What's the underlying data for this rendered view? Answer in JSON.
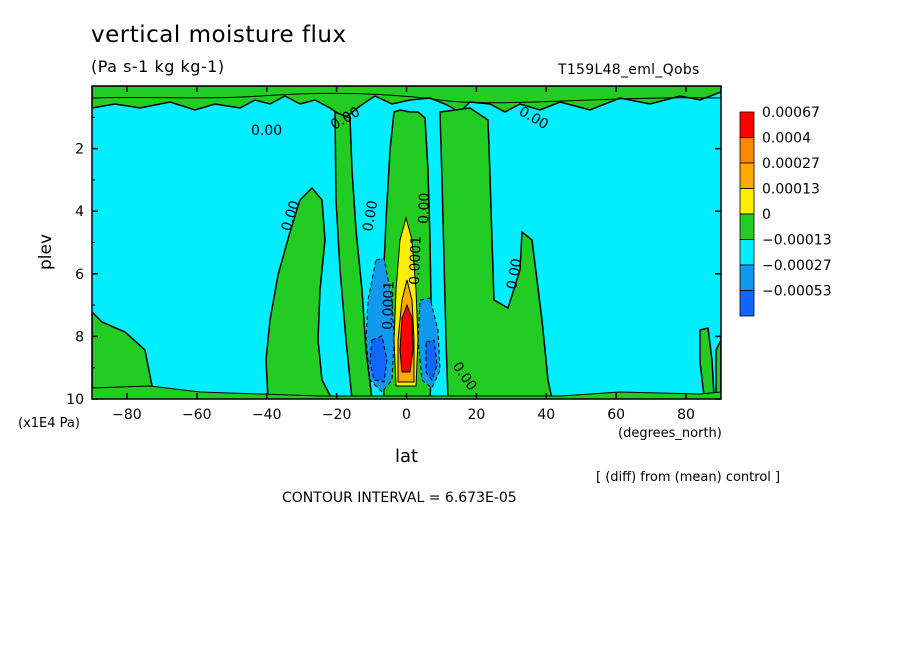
{
  "chart_data": {
    "type": "contour",
    "title": "vertical moisture flux",
    "subtitle": "(Pa s-1 kg kg-1)",
    "run_name": "T159L48_eml_Qobs",
    "xlabel": "lat",
    "xunit": "(degrees_north)",
    "ylabel": "plev",
    "yunit": "(x1E4 Pa)",
    "xlim": [
      -90,
      90
    ],
    "ylim": [
      10,
      0
    ],
    "xticks": [
      "-80",
      "-60",
      "-40",
      "-20",
      "0",
      "20",
      "40",
      "60",
      "80"
    ],
    "yticks": [
      "2",
      "4",
      "6",
      "8",
      "10"
    ],
    "colors": {
      "background": "#00eeff",
      "positive_low": "#22cc22",
      "positive_mid": "#ffee00",
      "positive_high": "#ffaa00",
      "positive_max": "#ff0000",
      "negative_mid": "#1199ee",
      "negative_max": "#1166ff"
    },
    "legend": {
      "position": "right",
      "levels": [
        "0.00067",
        "0.0004",
        "0.00027",
        "0.00013",
        "0",
        "-0.00013",
        "-0.00027",
        "-0.00053"
      ],
      "colors": [
        "#ff0000",
        "#ff8800",
        "#ffaa00",
        "#ffee00",
        "#22cc22",
        "#00eeff",
        "#1199ee",
        "#1166ff"
      ]
    },
    "contour_labels": [
      "0.00",
      "0.00",
      "0.00",
      "0.00",
      "0.00",
      "0.00",
      "0.00",
      "0.00",
      "0.0001",
      "0.0001"
    ],
    "annotation": "[ (diff) from (mean) control ]",
    "contour_interval": "CONTOUR INTERVAL = 6.673E-05"
  }
}
